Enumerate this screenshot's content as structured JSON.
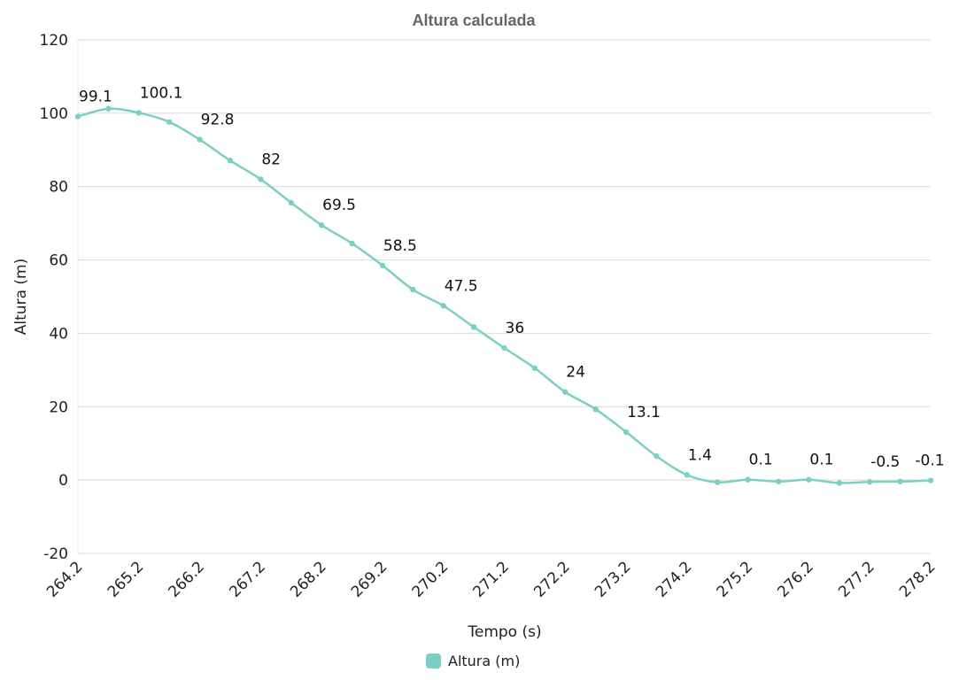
{
  "chart_data": {
    "type": "line",
    "title": "Altura calculada",
    "xlabel": "Tempo (s)",
    "ylabel": "Altura (m)",
    "ylim": [
      -20,
      120
    ],
    "yticks": [
      "-20",
      "0",
      "20",
      "40",
      "60",
      "80",
      "100",
      "120"
    ],
    "xtick_labels": [
      "264.2",
      "265.2",
      "266.2",
      "267.2",
      "268.2",
      "269.2",
      "270.2",
      "271.2",
      "272.2",
      "273.2",
      "274.2",
      "275.2",
      "276.2",
      "277.2",
      "278.2"
    ],
    "grid": true,
    "legend_position": "bottom",
    "color": "#7ccfc4",
    "x": [
      264.2,
      264.7,
      265.2,
      265.7,
      266.2,
      266.7,
      267.2,
      267.7,
      268.2,
      268.7,
      269.2,
      269.7,
      270.2,
      270.7,
      271.2,
      271.7,
      272.2,
      272.7,
      273.2,
      273.7,
      274.2,
      274.7,
      275.2,
      275.7,
      276.2,
      276.7,
      277.2,
      277.7,
      278.2
    ],
    "series": [
      {
        "name": "Altura (m)",
        "values": [
          99.1,
          101.2,
          100.1,
          97.6,
          92.8,
          87.1,
          82,
          75.6,
          69.5,
          64.5,
          58.5,
          51.9,
          47.5,
          41.7,
          36,
          30.5,
          24,
          19.3,
          13.1,
          6.5,
          1.4,
          -0.6,
          0.1,
          -0.4,
          0.1,
          -0.8,
          -0.5,
          -0.4,
          -0.1
        ]
      }
    ],
    "data_labels": [
      {
        "x": 264.2,
        "text": "99.1"
      },
      {
        "x": 265.2,
        "text": "100.1"
      },
      {
        "x": 266.2,
        "text": "92.8"
      },
      {
        "x": 267.2,
        "text": "82"
      },
      {
        "x": 268.2,
        "text": "69.5"
      },
      {
        "x": 269.2,
        "text": "58.5"
      },
      {
        "x": 270.2,
        "text": "47.5"
      },
      {
        "x": 271.2,
        "text": "36"
      },
      {
        "x": 272.2,
        "text": "24"
      },
      {
        "x": 273.2,
        "text": "13.1"
      },
      {
        "x": 274.2,
        "text": "1.4"
      },
      {
        "x": 275.2,
        "text": "0.1"
      },
      {
        "x": 276.2,
        "text": "0.1"
      },
      {
        "x": 277.2,
        "text": "-0.5"
      },
      {
        "x": 278.2,
        "text": "-0.1"
      }
    ]
  }
}
